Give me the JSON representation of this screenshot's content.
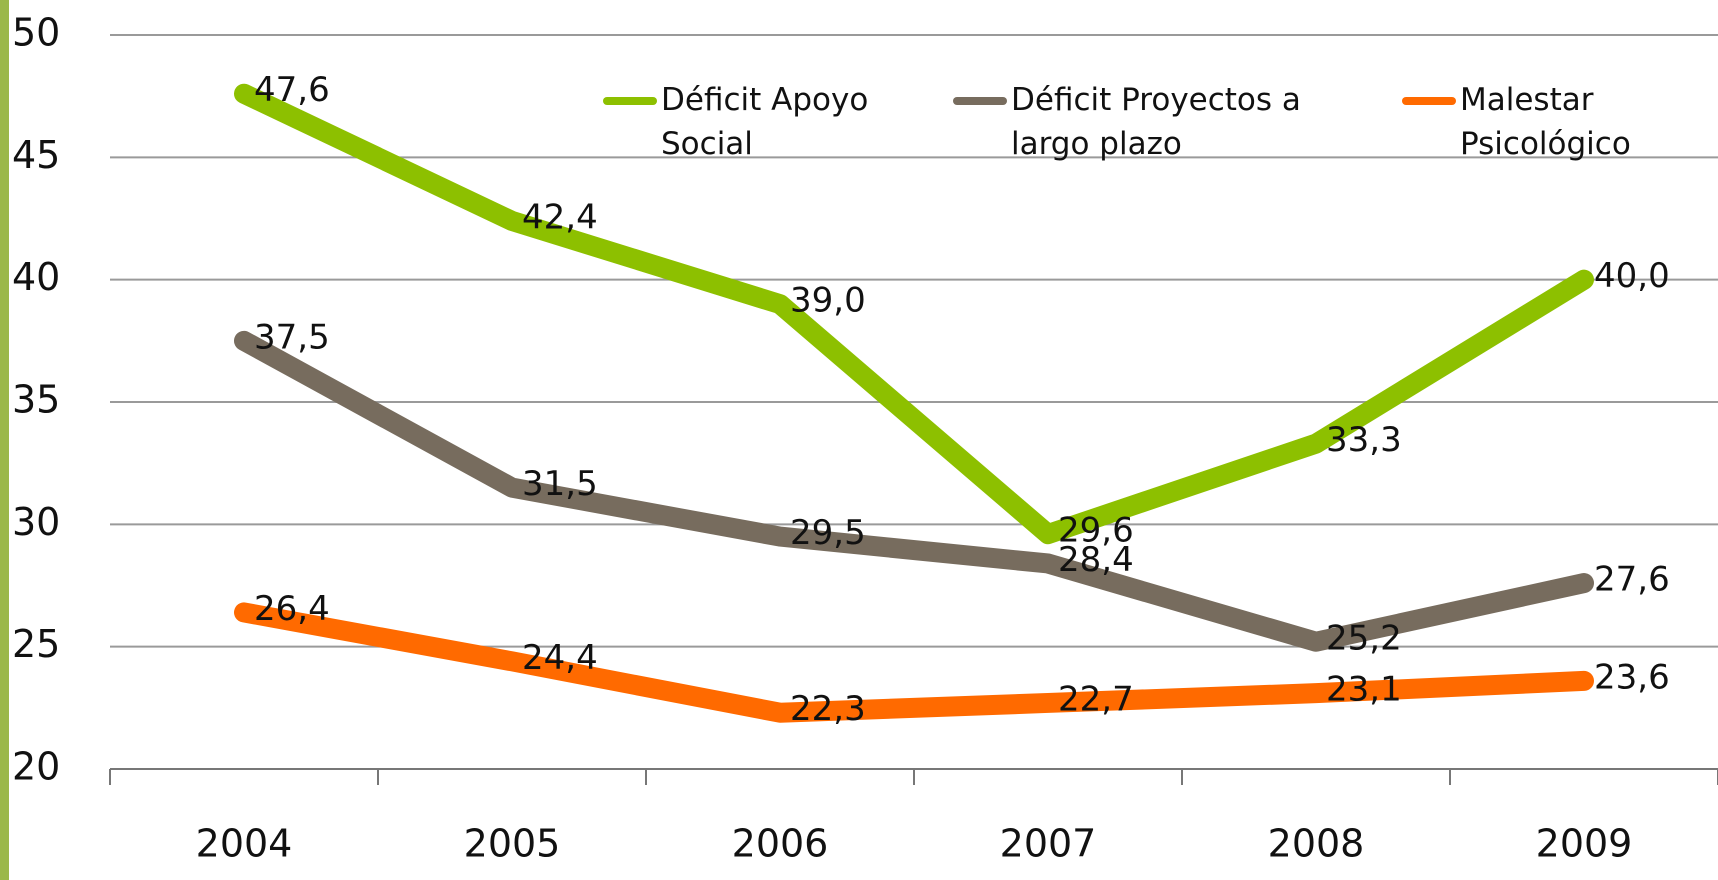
{
  "chart_data": {
    "type": "line",
    "categories": [
      "2004",
      "2005",
      "2006",
      "2007",
      "2008",
      "2009"
    ],
    "series": [
      {
        "name": "Déficit Apoyo Social",
        "color": "#8dc000",
        "values": [
          47.6,
          42.4,
          39.0,
          29.6,
          33.3,
          40.0
        ],
        "value_labels": [
          "47,6",
          "42,4",
          "39,0",
          "29,6",
          "33,3",
          "40,0"
        ]
      },
      {
        "name": "Déficit Proyectos a largo plazo",
        "color": "#776c5e",
        "values": [
          37.5,
          31.5,
          29.5,
          28.4,
          25.2,
          27.6
        ],
        "value_labels": [
          "37,5",
          "31,5",
          "29,5",
          "28,4",
          "25,2",
          "27,6"
        ]
      },
      {
        "name": "Malestar Psicológico",
        "color": "#ff6a00",
        "values": [
          26.4,
          24.4,
          22.3,
          22.7,
          23.1,
          23.6
        ],
        "value_labels": [
          "26,4",
          "24,4",
          "22,3",
          "22,7",
          "23,1",
          "23,6"
        ]
      }
    ],
    "ylim": [
      20,
      50
    ],
    "yticks": [
      20,
      25,
      30,
      35,
      40,
      45,
      50
    ],
    "grid": true,
    "legend": "top"
  }
}
